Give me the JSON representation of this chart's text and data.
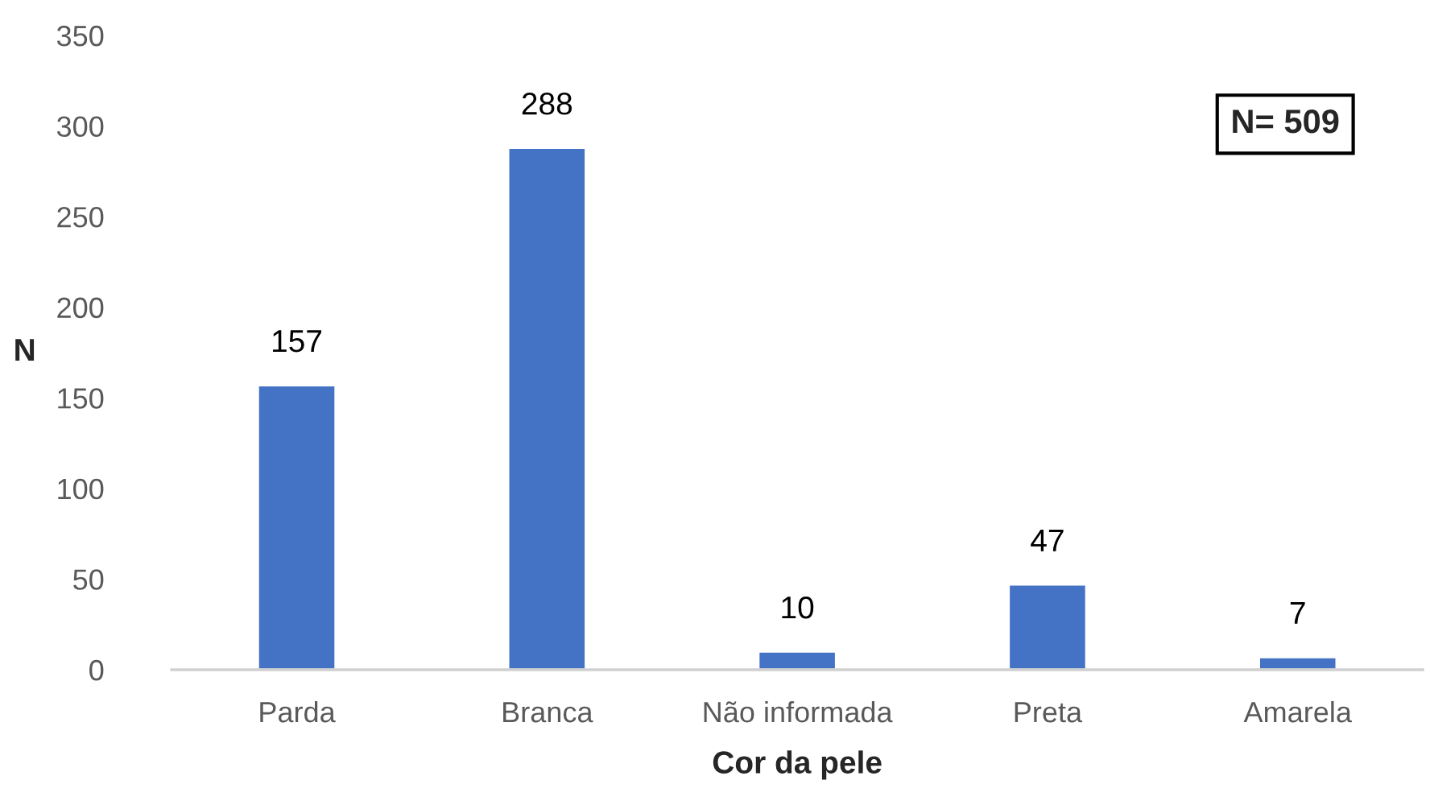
{
  "chart_data": {
    "type": "bar",
    "xlabel": "Cor da pele",
    "ylabel": "N",
    "categories": [
      "Parda",
      "Branca",
      "Não informada",
      "Preta",
      "Amarela"
    ],
    "values": [
      157,
      288,
      10,
      47,
      7
    ],
    "color": "#4472c4",
    "ylim": [
      0,
      350
    ],
    "yticks": [
      0,
      50,
      100,
      150,
      200,
      250,
      300,
      350
    ],
    "data_labels": true,
    "grid": false,
    "legend": false,
    "annotations": [
      "N= 509"
    ]
  }
}
